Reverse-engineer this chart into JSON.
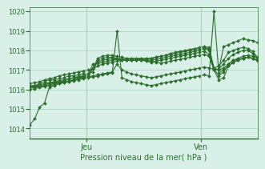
{
  "title": "",
  "xlabel": "Pression niveau de la mer( hPa )",
  "ylabel": "",
  "bg_color": "#d8f0e8",
  "grid_color": "#aad0bb",
  "line_color": "#2d6e2d",
  "marker_color": "#2d6e2d",
  "ylim": [
    1013.5,
    1020.2
  ],
  "xlim": [
    0,
    48
  ],
  "yticks": [
    1014,
    1015,
    1016,
    1017,
    1018,
    1019,
    1020
  ],
  "xtick_positions": [
    12,
    36
  ],
  "xtick_labels": [
    "Jeu",
    "Ven"
  ],
  "series": [
    [
      1014.2,
      1014.5,
      1015.1,
      1015.3,
      1016.1,
      1016.2,
      1016.3,
      1016.35,
      1016.4,
      1016.5,
      1016.6,
      1016.65,
      1016.7,
      1017.05,
      1017.2,
      1017.3,
      1017.35,
      1017.4,
      1017.45,
      1017.5,
      1017.5,
      1017.5,
      1017.52,
      1017.55,
      1017.55,
      1017.6,
      1017.65,
      1017.7,
      1017.75,
      1017.85,
      1017.9,
      1017.95,
      1018.0,
      1018.05,
      1018.1,
      1018.15,
      1018.2,
      1018.15,
      1017.1,
      1017.0,
      1018.2,
      1018.3,
      1018.4,
      1018.5,
      1018.6,
      1018.55,
      1018.5,
      1018.4
    ],
    [
      1016.1,
      1016.15,
      1016.2,
      1016.25,
      1016.3,
      1016.35,
      1016.4,
      1016.45,
      1016.55,
      1016.6,
      1016.65,
      1016.7,
      1016.75,
      1017.3,
      1017.35,
      1017.4,
      1017.45,
      1017.5,
      1017.55,
      1017.55,
      1017.5,
      1017.5,
      1017.5,
      1017.5,
      1017.5,
      1017.45,
      1017.4,
      1017.35,
      1017.4,
      1017.45,
      1017.5,
      1017.55,
      1017.6,
      1017.65,
      1017.7,
      1017.75,
      1017.8,
      1017.7,
      1017.0,
      1016.5,
      1016.6,
      1017.2,
      1017.4,
      1017.5,
      1017.6,
      1017.65,
      1017.6,
      1017.5
    ],
    [
      1016.15,
      1016.2,
      1016.25,
      1016.3,
      1016.35,
      1016.4,
      1016.45,
      1016.5,
      1016.55,
      1016.6,
      1016.65,
      1016.7,
      1016.75,
      1017.1,
      1017.4,
      1017.5,
      1017.55,
      1017.6,
      1017.55,
      1017.5,
      1017.5,
      1017.5,
      1017.5,
      1017.5,
      1017.45,
      1017.4,
      1017.45,
      1017.5,
      1017.55,
      1017.6,
      1017.65,
      1017.7,
      1017.75,
      1017.8,
      1017.85,
      1017.9,
      1017.95,
      1017.8,
      1017.05,
      1016.7,
      1016.9,
      1017.3,
      1017.5,
      1017.55,
      1017.6,
      1017.65,
      1017.6,
      1017.45
    ],
    [
      1016.2,
      1016.2,
      1016.3,
      1016.4,
      1016.5,
      1016.5,
      1016.55,
      1016.6,
      1016.7,
      1016.7,
      1016.75,
      1016.8,
      1016.8,
      1016.9,
      1017.5,
      1017.6,
      1017.65,
      1017.65,
      1017.6,
      1017.55,
      1017.55,
      1017.55,
      1017.55,
      1017.55,
      1017.5,
      1017.5,
      1017.55,
      1017.6,
      1017.65,
      1017.7,
      1017.75,
      1017.8,
      1017.85,
      1017.9,
      1017.95,
      1018.0,
      1018.1,
      1018.1,
      1017.0,
      1017.05,
      1017.3,
      1017.6,
      1017.8,
      1017.9,
      1018.0,
      1018.0,
      1017.85,
      1017.6
    ],
    [
      1016.3,
      1016.35,
      1016.4,
      1016.5,
      1016.55,
      1016.6,
      1016.7,
      1016.75,
      1016.8,
      1016.85,
      1016.9,
      1016.95,
      1017.0,
      1017.05,
      1017.6,
      1017.7,
      1017.75,
      1017.75,
      1017.7,
      1017.65,
      1017.6,
      1017.6,
      1017.6,
      1017.6,
      1017.6,
      1017.6,
      1017.65,
      1017.7,
      1017.75,
      1017.8,
      1017.85,
      1017.9,
      1017.95,
      1018.0,
      1018.05,
      1018.1,
      1018.15,
      1018.0,
      1017.1,
      1017.2,
      1017.5,
      1017.9,
      1018.0,
      1018.1,
      1018.15,
      1018.1,
      1017.95,
      1017.65
    ],
    [
      1016.1,
      1016.12,
      1016.15,
      1016.2,
      1016.25,
      1016.3,
      1016.35,
      1016.4,
      1016.45,
      1016.5,
      1016.55,
      1016.6,
      1016.65,
      1016.7,
      1016.75,
      1016.8,
      1016.85,
      1016.9,
      1017.3,
      1017.0,
      1016.9,
      1016.8,
      1016.75,
      1016.7,
      1016.65,
      1016.6,
      1016.65,
      1016.7,
      1016.75,
      1016.8,
      1016.85,
      1016.9,
      1016.95,
      1017.0,
      1017.05,
      1017.1,
      1017.15,
      1017.1,
      1017.05,
      1017.0,
      1017.1,
      1017.3,
      1017.5,
      1017.6,
      1017.7,
      1017.75,
      1017.7,
      1017.6
    ],
    [
      1016.0,
      1016.05,
      1016.1,
      1016.15,
      1016.2,
      1016.25,
      1016.3,
      1016.35,
      1016.4,
      1016.45,
      1016.5,
      1016.55,
      1016.6,
      1016.65,
      1016.7,
      1016.75,
      1016.8,
      1016.85,
      1019.0,
      1016.6,
      1016.5,
      1016.4,
      1016.35,
      1016.3,
      1016.25,
      1016.2,
      1016.25,
      1016.3,
      1016.35,
      1016.4,
      1016.45,
      1016.5,
      1016.55,
      1016.6,
      1016.65,
      1016.7,
      1016.75,
      1016.7,
      1020.0,
      1016.85,
      1017.0,
      1017.2,
      1017.4,
      1017.5,
      1017.6,
      1017.65,
      1017.6,
      1017.5
    ]
  ]
}
